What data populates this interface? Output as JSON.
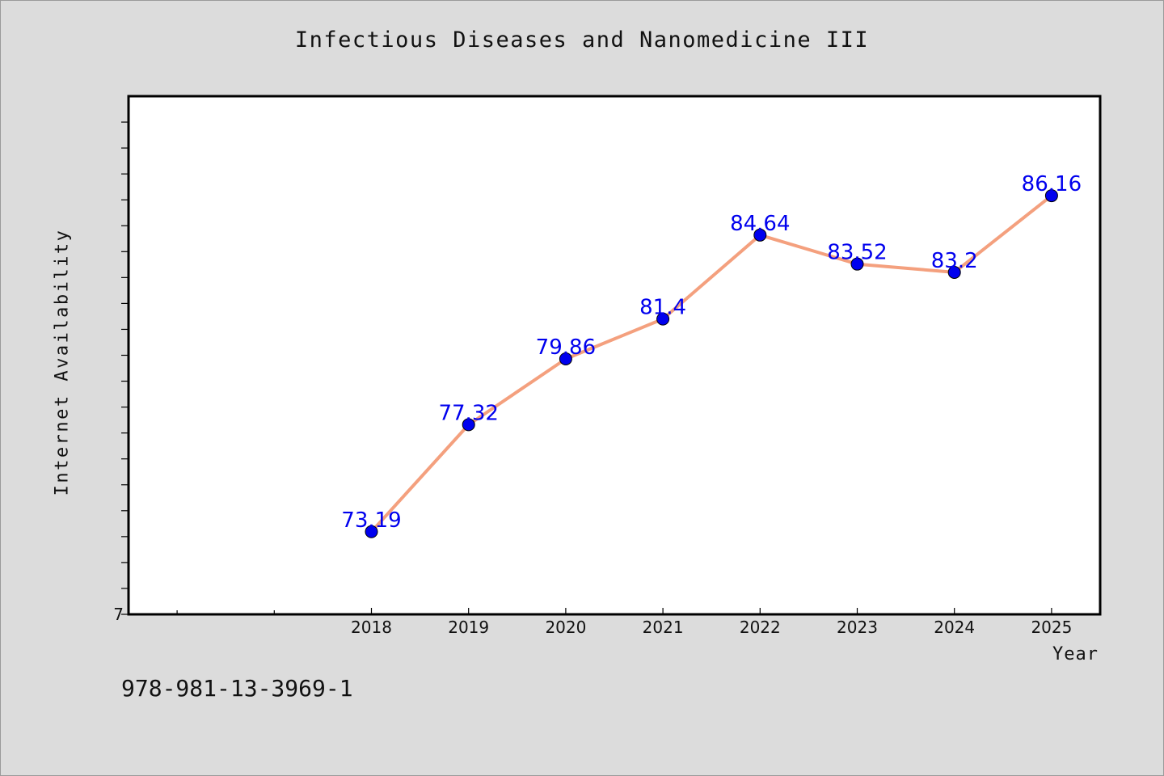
{
  "page": {
    "footer_text": "978-981-13-3969-1"
  },
  "colors": {
    "background": "#dcdcdc",
    "plot_area": "#ffffff",
    "line": "#f4a07e",
    "marker": "#0000ee",
    "data_label": "#0000ee"
  },
  "chart_data": {
    "type": "line",
    "title": "Infectious Diseases and Nanomedicine III",
    "xlabel": "Year",
    "ylabel": "Internet Availability",
    "x": [
      2018,
      2019,
      2020,
      2021,
      2022,
      2023,
      2024,
      2025
    ],
    "x_tick_labels": [
      "2018",
      "2019",
      "2020",
      "2021",
      "2022",
      "2023",
      "2024",
      "2025"
    ],
    "xlim": [
      2015.5,
      2025.5
    ],
    "ylim": [
      70,
      90
    ],
    "y_tick_labels_shown": [
      "7"
    ],
    "grid": false,
    "legend": "none",
    "series": [
      {
        "values": [
          73.19,
          77.32,
          79.86,
          81.4,
          84.64,
          83.52,
          83.2,
          86.16
        ],
        "data_labels": [
          "73.19",
          "77.32",
          "79.86",
          "81.4",
          "84.64",
          "83.52",
          "83.2",
          "86.16"
        ]
      }
    ]
  }
}
